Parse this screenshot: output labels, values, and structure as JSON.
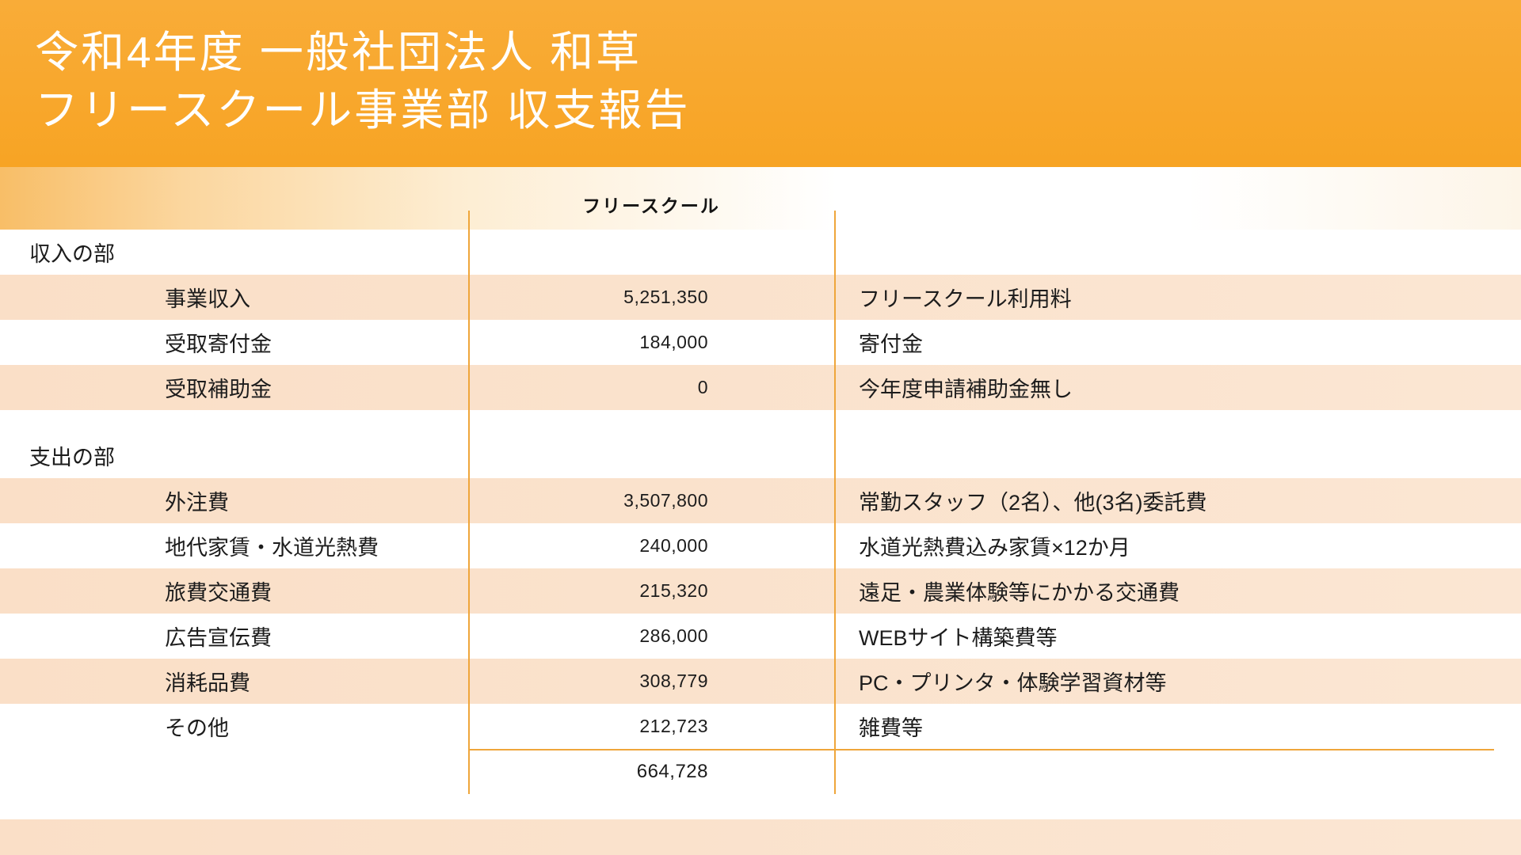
{
  "header": {
    "title_line1": "令和4年度 一般社団法人 和草",
    "title_line2": "フリースクール事業部 収支報告"
  },
  "table": {
    "column_header": "フリースクール",
    "sections": [
      {
        "label": "収入の部",
        "rows": [
          {
            "item": "事業収入",
            "amount": "5,251,350",
            "note": "フリースクール利用料"
          },
          {
            "item": "受取寄付金",
            "amount": "184,000",
            "note": "寄付金"
          },
          {
            "item": "受取補助金",
            "amount": "0",
            "note": "今年度申請補助金無し"
          }
        ]
      },
      {
        "label": "支出の部",
        "rows": [
          {
            "item": "外注費",
            "amount": "3,507,800",
            "note": "常勤スタッフ（2名）、他(3名)委託費"
          },
          {
            "item": "地代家賃・水道光熱費",
            "amount": "240,000",
            "note": "水道光熱費込み家賃×12か月"
          },
          {
            "item": "旅費交通費",
            "amount": "215,320",
            "note": "遠足・農業体験等にかかる交通費"
          },
          {
            "item": "広告宣伝費",
            "amount": "286,000",
            "note": "WEBサイト構築費等"
          },
          {
            "item": "消耗品費",
            "amount": "308,779",
            "note": "PC・プリンタ・体験学習資材等"
          },
          {
            "item": "その他",
            "amount": "212,723",
            "note": "雑費等"
          }
        ]
      }
    ],
    "total_amount": "664,728"
  },
  "colors": {
    "banner_orange": "#F8A72E",
    "stripe_peach": "#FBE2CC",
    "divider_orange": "#EFA63B",
    "text_dark": "#1C1C1C",
    "title_white": "#FFFFFF"
  }
}
